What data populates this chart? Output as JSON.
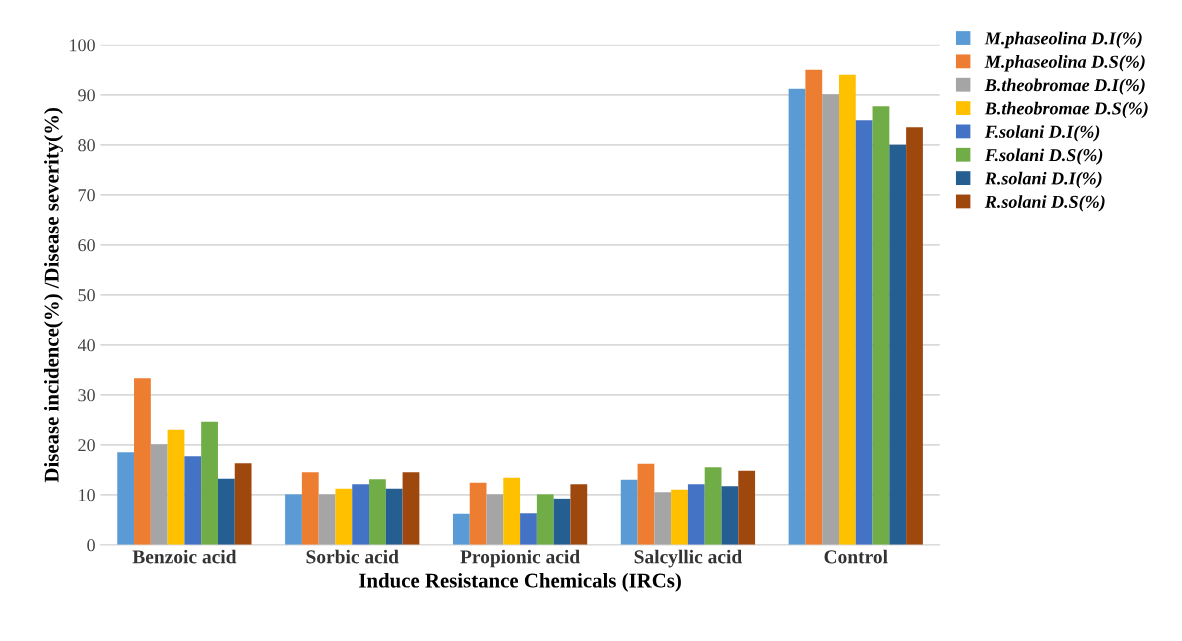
{
  "chart_data": {
    "type": "bar",
    "xlabel": "Induce Resistance Chemicals (IRCs)",
    "ylabel": "Disease incidence(%) /Disease severity(%)",
    "categories": [
      "Benzoic acid",
      "Sorbic acid",
      "Propionic acid",
      "Salcyllic acid",
      "Control"
    ],
    "series": [
      {
        "name": "M.phaseolina D.I(%)",
        "color": "#5b9bd5",
        "values": [
          18.5,
          10.1,
          6.2,
          13.0,
          91.2
        ]
      },
      {
        "name": "M.phaseolina D.S(%)",
        "color": "#ed7d31",
        "values": [
          33.3,
          14.5,
          12.4,
          16.2,
          95.0
        ]
      },
      {
        "name": "B.theobromae D.I(%)",
        "color": "#a5a5a5",
        "values": [
          20.1,
          10.1,
          10.1,
          10.5,
          90.1
        ]
      },
      {
        "name": "B.theobromae D.S(%)",
        "color": "#ffc000",
        "values": [
          23.0,
          11.2,
          13.4,
          11.0,
          94.0
        ]
      },
      {
        "name": "F.solani D.I(%)",
        "color": "#4472c4",
        "values": [
          17.7,
          12.1,
          6.3,
          12.1,
          84.9
        ]
      },
      {
        "name": "F.solani D.S(%)",
        "color": "#70ad47",
        "values": [
          24.6,
          13.1,
          10.1,
          15.5,
          87.7
        ]
      },
      {
        "name": "R.solani D.I(%)",
        "color": "#255e91",
        "values": [
          13.2,
          11.2,
          9.2,
          11.7,
          80.0
        ]
      },
      {
        "name": "R.solani D.S(%)",
        "color": "#9e480e",
        "values": [
          16.3,
          14.5,
          12.1,
          14.8,
          83.5
        ]
      }
    ],
    "ylim": [
      0,
      100
    ],
    "yticks": [
      0,
      10,
      20,
      30,
      40,
      50,
      60,
      70,
      80,
      90,
      100
    ],
    "grid": "y",
    "legend": "top right"
  }
}
